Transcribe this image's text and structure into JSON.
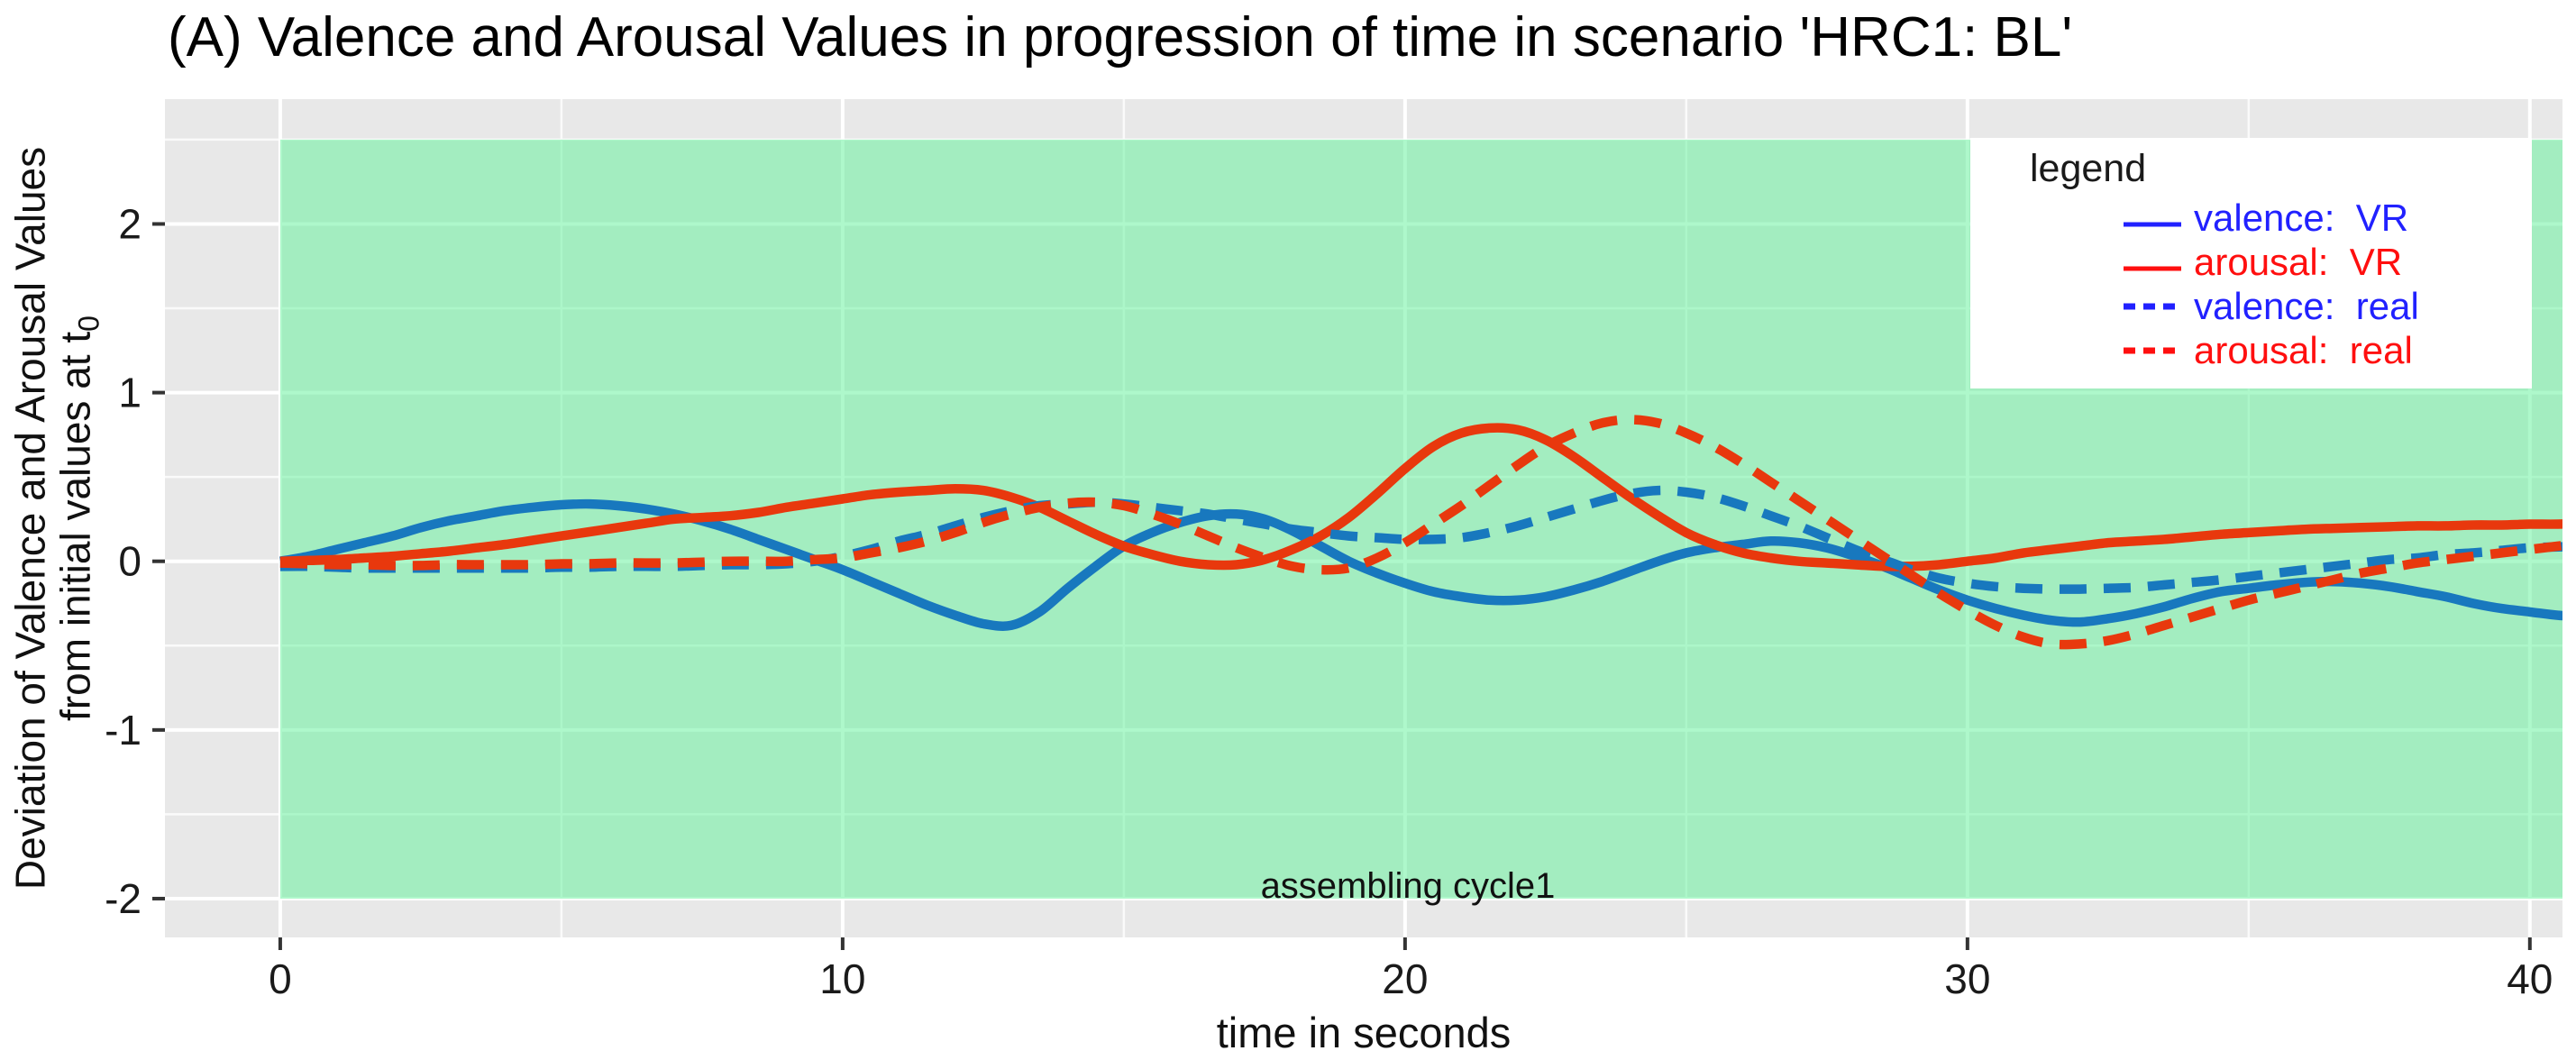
{
  "figure": {
    "title": "(A) Valence and Arousal Values in progression of time in scenario 'HRC1: BL'"
  },
  "chart_data": {
    "type": "line",
    "title": "(A) Valence and Arousal Values in progression of time in scenario 'HRC1: BL'",
    "xlabel": "time in seconds",
    "ylabel_line1": "Deviation of Valence and Arousal Values",
    "ylabel_line2": "from initial values at t",
    "ylabel_subscript": "0",
    "grid": true,
    "legend_position": "top-right",
    "panel_bg": "#E8E8E8",
    "gridline_color": "#FFFFFF",
    "x_range": [
      -2.05,
      40.58
    ],
    "y_range": [
      -2.23,
      2.74
    ],
    "x_ticks": [
      0,
      10,
      20,
      30,
      40
    ],
    "x_tick_labels": [
      "0",
      "10",
      "20",
      "30",
      "40"
    ],
    "x_minor_ticks": [
      5,
      15,
      25,
      35
    ],
    "y_ticks": [
      -2,
      -1,
      0,
      1,
      2
    ],
    "y_tick_labels": [
      "-2",
      "-1",
      "0",
      "1",
      "2"
    ],
    "y_minor_ticks": [
      -1.5,
      -0.5,
      0.5,
      1.5,
      2.5
    ],
    "highlight_region": {
      "label": "assembling cycle1",
      "x0": 0,
      "x1": 40.58,
      "y0": -2.0,
      "y1": 2.5,
      "color": "#64F29C",
      "opacity": 0.52,
      "label_x": 20.05,
      "label_y": -1.92
    },
    "x": [
      0,
      0.5,
      1,
      1.5,
      2,
      2.5,
      3,
      3.5,
      4,
      4.5,
      5,
      5.5,
      6,
      6.5,
      7,
      7.5,
      8,
      8.5,
      9,
      9.5,
      10,
      10.5,
      11,
      11.5,
      12,
      12.5,
      13,
      13.5,
      14,
      14.5,
      15,
      15.5,
      16,
      16.5,
      17,
      17.5,
      18,
      18.5,
      19,
      19.5,
      20,
      20.5,
      21,
      21.5,
      22,
      22.5,
      23,
      23.5,
      24,
      24.5,
      25,
      25.5,
      26,
      26.5,
      27,
      27.5,
      28,
      28.5,
      29,
      29.5,
      30,
      30.5,
      31,
      31.5,
      32,
      32.5,
      33,
      33.5,
      34,
      34.5,
      35,
      35.5,
      36,
      36.5,
      37,
      37.5,
      38,
      38.5,
      39,
      39.5,
      40,
      40.5,
      41
    ],
    "series": [
      {
        "name": "valence: VR",
        "color": "#1878BE",
        "style": "solid",
        "values": [
          0.0,
          0.03,
          0.07,
          0.11,
          0.15,
          0.2,
          0.24,
          0.27,
          0.3,
          0.32,
          0.335,
          0.34,
          0.33,
          0.31,
          0.28,
          0.24,
          0.19,
          0.13,
          0.07,
          0.01,
          -0.05,
          -0.12,
          -0.19,
          -0.26,
          -0.32,
          -0.37,
          -0.38,
          -0.3,
          -0.16,
          -0.03,
          0.09,
          0.17,
          0.23,
          0.27,
          0.28,
          0.25,
          0.18,
          0.09,
          0.0,
          -0.07,
          -0.13,
          -0.18,
          -0.21,
          -0.23,
          -0.23,
          -0.21,
          -0.17,
          -0.12,
          -0.06,
          0.0,
          0.05,
          0.08,
          0.1,
          0.12,
          0.11,
          0.08,
          0.03,
          -0.03,
          -0.1,
          -0.17,
          -0.23,
          -0.28,
          -0.32,
          -0.35,
          -0.36,
          -0.34,
          -0.31,
          -0.27,
          -0.22,
          -0.18,
          -0.16,
          -0.14,
          -0.125,
          -0.12,
          -0.13,
          -0.15,
          -0.18,
          -0.21,
          -0.25,
          -0.28,
          -0.3,
          -0.32,
          -0.33
        ]
      },
      {
        "name": "arousal: VR",
        "color": "#E8380D",
        "style": "solid",
        "values": [
          0.0,
          0.005,
          0.01,
          0.02,
          0.03,
          0.045,
          0.06,
          0.08,
          0.1,
          0.125,
          0.15,
          0.175,
          0.2,
          0.225,
          0.25,
          0.26,
          0.27,
          0.29,
          0.32,
          0.345,
          0.37,
          0.395,
          0.41,
          0.42,
          0.43,
          0.42,
          0.38,
          0.32,
          0.24,
          0.16,
          0.09,
          0.04,
          0.0,
          -0.02,
          -0.02,
          0.01,
          0.07,
          0.15,
          0.26,
          0.4,
          0.55,
          0.68,
          0.76,
          0.79,
          0.78,
          0.72,
          0.62,
          0.5,
          0.38,
          0.27,
          0.17,
          0.1,
          0.05,
          0.02,
          0.0,
          -0.01,
          -0.02,
          -0.03,
          -0.03,
          -0.02,
          0.0,
          0.02,
          0.05,
          0.07,
          0.09,
          0.11,
          0.12,
          0.13,
          0.145,
          0.16,
          0.17,
          0.18,
          0.19,
          0.195,
          0.2,
          0.205,
          0.21,
          0.21,
          0.215,
          0.215,
          0.22,
          0.22,
          0.225
        ]
      },
      {
        "name": "valence: real",
        "color": "#1878BE",
        "style": "dashed",
        "values": [
          -0.03,
          -0.03,
          -0.035,
          -0.04,
          -0.04,
          -0.04,
          -0.04,
          -0.04,
          -0.04,
          -0.04,
          -0.035,
          -0.035,
          -0.03,
          -0.03,
          -0.03,
          -0.025,
          -0.02,
          -0.02,
          -0.015,
          0.0,
          0.03,
          0.07,
          0.12,
          0.16,
          0.21,
          0.26,
          0.3,
          0.33,
          0.34,
          0.35,
          0.34,
          0.32,
          0.3,
          0.28,
          0.25,
          0.22,
          0.19,
          0.17,
          0.15,
          0.14,
          0.13,
          0.13,
          0.14,
          0.17,
          0.21,
          0.26,
          0.31,
          0.36,
          0.4,
          0.42,
          0.41,
          0.38,
          0.33,
          0.27,
          0.21,
          0.14,
          0.07,
          0.01,
          -0.05,
          -0.1,
          -0.13,
          -0.15,
          -0.16,
          -0.165,
          -0.165,
          -0.16,
          -0.155,
          -0.14,
          -0.125,
          -0.11,
          -0.09,
          -0.07,
          -0.05,
          -0.03,
          -0.01,
          0.01,
          0.02,
          0.04,
          0.05,
          0.065,
          0.08,
          0.085,
          0.09
        ]
      },
      {
        "name": "arousal: real",
        "color": "#E8380D",
        "style": "dashed",
        "values": [
          -0.01,
          -0.015,
          -0.02,
          -0.02,
          -0.025,
          -0.025,
          -0.02,
          -0.02,
          -0.02,
          -0.02,
          -0.015,
          -0.015,
          -0.01,
          -0.01,
          -0.01,
          -0.005,
          0.0,
          0.0,
          0.0,
          0.01,
          0.02,
          0.05,
          0.08,
          0.12,
          0.17,
          0.23,
          0.28,
          0.32,
          0.345,
          0.35,
          0.33,
          0.28,
          0.22,
          0.15,
          0.08,
          0.02,
          -0.03,
          -0.05,
          -0.04,
          0.02,
          0.11,
          0.22,
          0.33,
          0.45,
          0.57,
          0.68,
          0.76,
          0.82,
          0.84,
          0.82,
          0.76,
          0.68,
          0.58,
          0.47,
          0.36,
          0.25,
          0.14,
          0.03,
          -0.08,
          -0.19,
          -0.29,
          -0.38,
          -0.45,
          -0.49,
          -0.49,
          -0.47,
          -0.43,
          -0.38,
          -0.33,
          -0.28,
          -0.23,
          -0.19,
          -0.15,
          -0.11,
          -0.07,
          -0.04,
          -0.01,
          0.01,
          0.03,
          0.05,
          0.07,
          0.09,
          0.11
        ]
      }
    ]
  },
  "legend": {
    "title": "legend",
    "entries": [
      {
        "label": "valence:  VR",
        "text_color": "#2121FF",
        "line_color": "#2121FF",
        "line": "solid"
      },
      {
        "label": "arousal:  VR",
        "text_color": "#FF0F0F",
        "line_color": "#FF0F0F",
        "line": "solid"
      },
      {
        "label": "valence:  real",
        "text_color": "#2121FF",
        "line_color": "#2121FF",
        "line": "dashed"
      },
      {
        "label": "arousal:  real",
        "text_color": "#FF0F0F",
        "line_color": "#FF0F0F",
        "line": "dashed"
      }
    ]
  }
}
